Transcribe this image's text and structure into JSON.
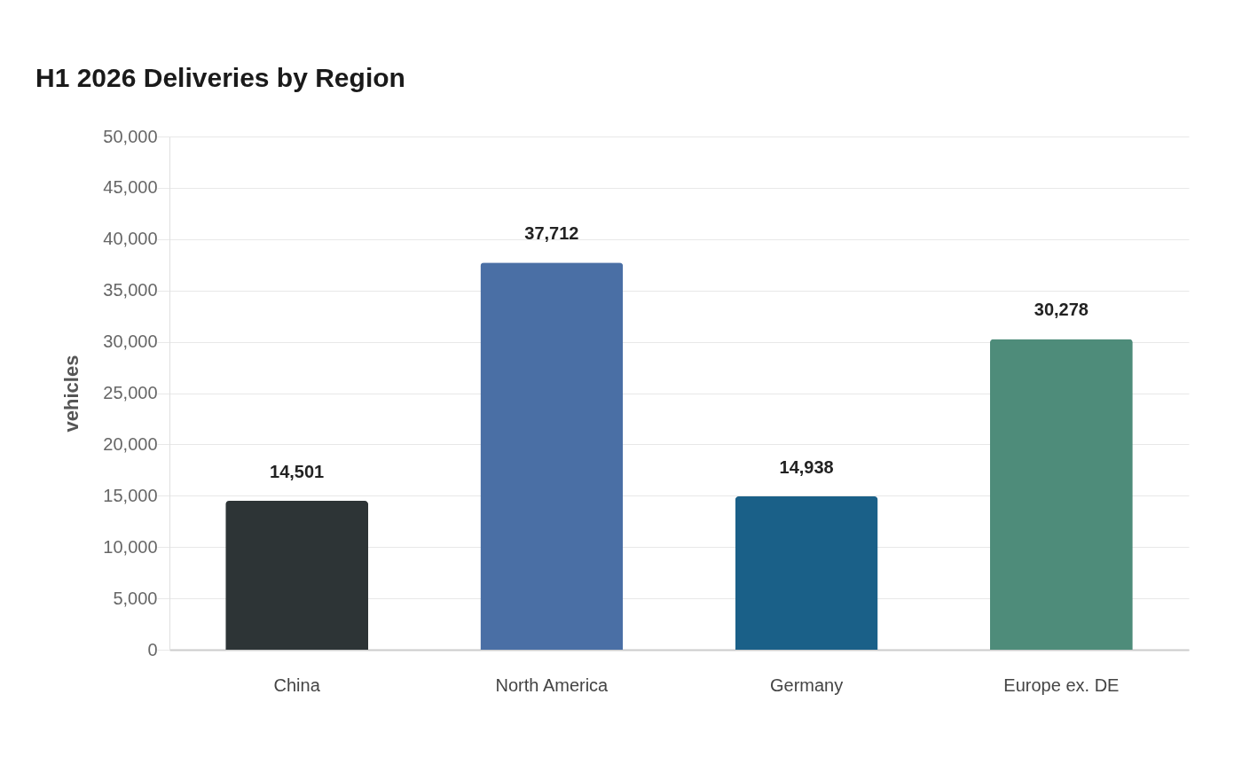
{
  "chart_data": {
    "type": "bar",
    "title": "H1 2026 Deliveries by Region",
    "ylabel": "vehicles",
    "categories": [
      "China",
      "North America",
      "Germany",
      "Europe ex. DE"
    ],
    "values": [
      14501,
      37712,
      14938,
      30278
    ],
    "colors": [
      "#2d3436",
      "#4a6fa5",
      "#1a6088",
      "#4e8c7a"
    ],
    "ylim": [
      0,
      50000
    ],
    "yticks": [
      0,
      {
        "value": 5000,
        "label": "5,000"
      },
      {
        "value": 10000,
        "label": "10,000"
      },
      {
        "value": 15000,
        "label": "15,000"
      },
      {
        "value": 20000,
        "label": "20,000"
      },
      {
        "value": 25000,
        "label": "25,000"
      },
      {
        "value": 30000,
        "label": "30,000"
      },
      {
        "value": 35000,
        "label": "35,000"
      },
      {
        "value": 40000,
        "label": "40,000"
      },
      {
        "value": 45000,
        "label": "45,000"
      },
      {
        "value": 50000,
        "label": "50,000"
      }
    ],
    "value_labels": [
      "14,501",
      "37,712",
      "14,938",
      "30,278"
    ],
    "grid": "y"
  }
}
